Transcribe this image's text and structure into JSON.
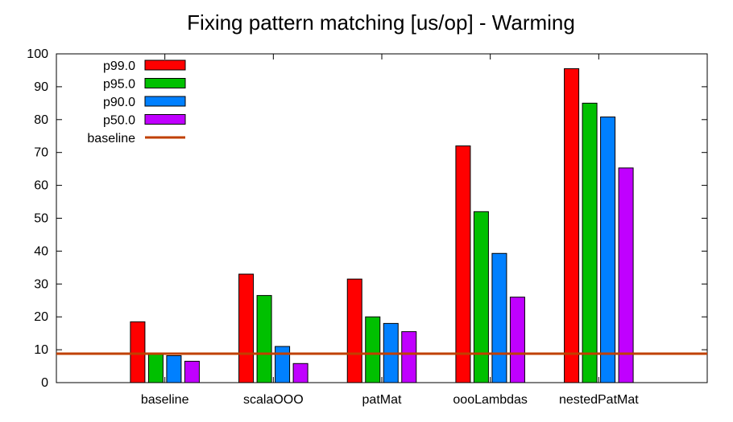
{
  "chart_data": {
    "type": "bar",
    "title": "Fixing pattern matching [us/op] - Warming",
    "xlabel": "",
    "ylabel": "",
    "ylim": [
      0,
      100
    ],
    "y_ticks": [
      0,
      10,
      20,
      30,
      40,
      50,
      60,
      70,
      80,
      90,
      100
    ],
    "categories": [
      "baseline",
      "scalaOOO",
      "patMat",
      "oooLambdas",
      "nestedPatMat"
    ],
    "series": [
      {
        "name": "p99.0",
        "color": "#ff0000",
        "values": [
          18.5,
          33,
          31.5,
          72,
          95.5
        ]
      },
      {
        "name": "p95.0",
        "color": "#00c000",
        "values": [
          9,
          26.5,
          20,
          52,
          85
        ]
      },
      {
        "name": "p90.0",
        "color": "#0080ff",
        "values": [
          8.2,
          11,
          18,
          39.3,
          80.8
        ]
      },
      {
        "name": "p50.0",
        "color": "#c000ff",
        "values": [
          6.5,
          5.8,
          15.5,
          26,
          65.3
        ]
      }
    ],
    "baseline": {
      "name": "baseline",
      "value": 8.8,
      "color": "#c04000"
    },
    "legend_position": "top-left",
    "grid": false
  }
}
